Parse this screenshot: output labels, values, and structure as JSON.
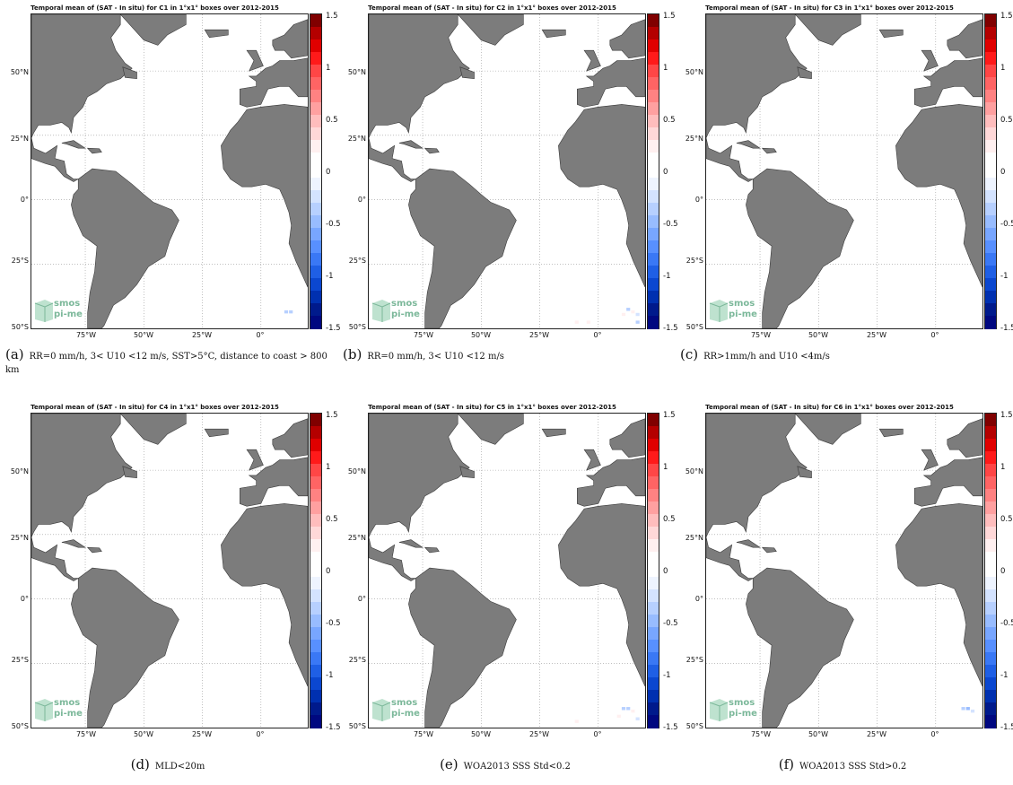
{
  "colorbar": {
    "ticks": [
      "1.5",
      "1",
      "0.5",
      "0",
      "-0.5",
      "-1",
      "-1.5"
    ],
    "colors_top_to_bottom": [
      "#800000",
      "#b40000",
      "#e00000",
      "#ff1a1a",
      "#ff4646",
      "#ff6464",
      "#ff8282",
      "#ffa0a0",
      "#ffbdbd",
      "#ffd8d8",
      "#fff0f0",
      "#ffffff",
      "#ffffff",
      "#eef4ff",
      "#d4e3ff",
      "#b7d0ff",
      "#98bcff",
      "#78a6ff",
      "#5890ff",
      "#3a78f5",
      "#1f5fe5",
      "#0b47d0",
      "#0030b0",
      "#001a8c",
      "#000880"
    ]
  },
  "lat_labels": [
    "50°N",
    "25°N",
    "0°",
    "25°S",
    "50°S"
  ],
  "lon_labels": [
    "75°W",
    "50°W",
    "25°W",
    "0°"
  ],
  "logo": {
    "line1": "smos",
    "line2": "pi-me"
  },
  "colors": {
    "land": "#7c7c7c",
    "grid": "#999999"
  },
  "panels": [
    {
      "title": "Temporal mean of (SAT - In situ) for C1 in 1°x1° boxes over 2012-2015",
      "letter": "(a)",
      "caption": "RR=0 mm/h, 3< U10 <12 m/s, SST>5°C, distance to coast > 800 km",
      "anomalies": [
        {
          "lon": 10,
          "lat": -44,
          "value": -0.3
        },
        {
          "lon": 12,
          "lat": -44,
          "value": -0.4
        }
      ]
    },
    {
      "title": "Temporal mean of (SAT - In situ) for C2 in 1°x1° boxes over 2012-2015",
      "letter": "(b)",
      "caption": "RR=0 mm/h, 3< U10 <12 m/s",
      "anomalies": [
        {
          "lon": 12,
          "lat": -43,
          "value": -0.3
        },
        {
          "lon": 14,
          "lat": -44,
          "value": 0.3
        },
        {
          "lon": 10,
          "lat": -45,
          "value": 0.2
        },
        {
          "lon": 16,
          "lat": -45,
          "value": -0.2
        },
        {
          "lon": -5,
          "lat": -48,
          "value": 0.2
        },
        {
          "lon": -10,
          "lat": -48,
          "value": 0.2
        },
        {
          "lon": 16,
          "lat": -48,
          "value": -0.3
        }
      ]
    },
    {
      "title": "Temporal mean of (SAT - In situ) for C3 in 1°x1° boxes over 2012-2015",
      "letter": "(c)",
      "caption": "RR>1mm/h and U10 <4m/s",
      "anomalies": []
    },
    {
      "title": "Temporal mean of (SAT - In situ) for C4 in 1°x1° boxes over 2012-2015",
      "letter": "(d)",
      "caption": "MLD<20m",
      "anomalies": []
    },
    {
      "title": "Temporal mean of (SAT - In situ) for C5 in 1°x1° boxes over 2012-2015",
      "letter": "(e)",
      "caption": "WOA2013 SSS Std<0.2",
      "anomalies": [
        {
          "lon": 10,
          "lat": -43,
          "value": -0.4
        },
        {
          "lon": 12,
          "lat": -43,
          "value": -0.3
        },
        {
          "lon": 14,
          "lat": -44,
          "value": 0.3
        },
        {
          "lon": 16,
          "lat": -47,
          "value": -0.2
        },
        {
          "lon": -10,
          "lat": -48,
          "value": 0.2
        },
        {
          "lon": 8,
          "lat": -46,
          "value": 0.2
        }
      ]
    },
    {
      "title": "Temporal mean of (SAT - In situ) for C6 in 1°x1° boxes over 2012-2015",
      "letter": "(f)",
      "caption": "WOA2013 SSS Std>0.2",
      "anomalies": [
        {
          "lon": 11,
          "lat": -43,
          "value": -0.3
        },
        {
          "lon": 13,
          "lat": -43,
          "value": -0.5
        },
        {
          "lon": 15,
          "lat": -44,
          "value": -0.2
        }
      ]
    }
  ]
}
